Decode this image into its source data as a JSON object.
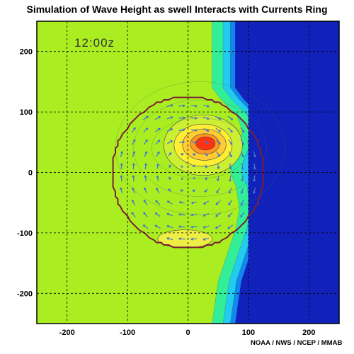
{
  "figure": {
    "title": "Simulation of Wave Height as swell Interacts with Currents Ring",
    "time_label": "12:00z",
    "credit": "NOAA / NWS / NCEP / MMAB"
  },
  "chart_data": {
    "type": "heatmap",
    "title": "Simulation of Wave Height as swell Interacts with Currents Ring",
    "xlabel": "",
    "ylabel": "",
    "xlim": [
      -250,
      250
    ],
    "ylim": [
      -250,
      250
    ],
    "x_ticks": [
      -200,
      -100,
      0,
      100,
      200
    ],
    "y_ticks": [
      -200,
      -100,
      0,
      100,
      200
    ],
    "grid": "dashed",
    "annotation": "12:00z",
    "ring": {
      "center": [
        0,
        0
      ],
      "radius": 125,
      "color": "#7a2035"
    },
    "field_regions": [
      {
        "region": "left background",
        "color": "#aaee22"
      },
      {
        "region": "band x 40-70",
        "color": "#33ee99"
      },
      {
        "region": "band x 70-90",
        "color": "#22ccee"
      },
      {
        "region": "band x 90-100",
        "color": "#1188ee"
      },
      {
        "region": "right side x > 100",
        "color": "#1122bb"
      }
    ],
    "blobs": [
      {
        "center": [
          25,
          45
        ],
        "rx": 65,
        "ry": 50,
        "color": "#ccee33"
      },
      {
        "center": [
          25,
          45
        ],
        "rx": 48,
        "ry": 35,
        "color": "#ffee33"
      },
      {
        "center": [
          27,
          46
        ],
        "rx": 36,
        "ry": 26,
        "color": "#ffcc33"
      },
      {
        "center": [
          28,
          47
        ],
        "rx": 24,
        "ry": 17,
        "color": "#ff9922"
      },
      {
        "center": [
          29,
          48
        ],
        "rx": 16,
        "ry": 11,
        "color": "#ff3311"
      },
      {
        "center": [
          -5,
          -110
        ],
        "rx": 45,
        "ry": 15,
        "color": "#eeee44"
      }
    ],
    "vector_field": {
      "type": "clockwise rotation about ring center",
      "color": "#4477cc"
    }
  }
}
